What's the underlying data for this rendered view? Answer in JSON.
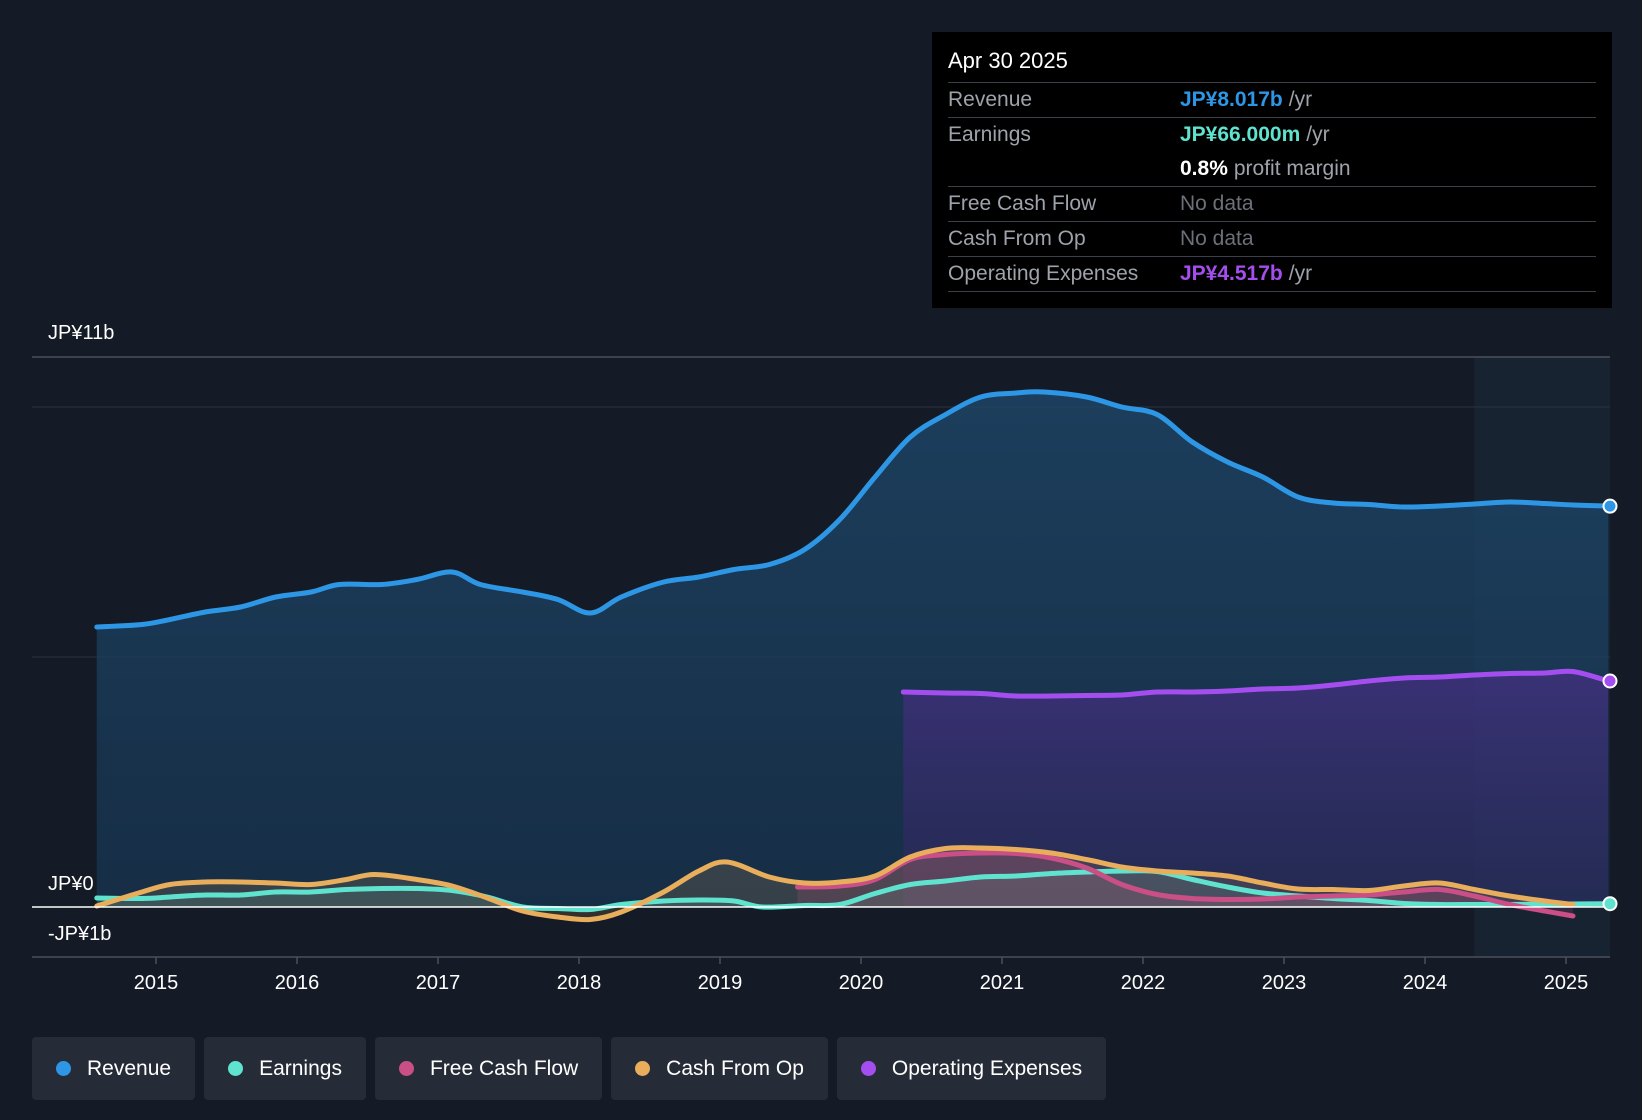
{
  "tooltip": {
    "date": "Apr 30 2025",
    "rows": [
      {
        "label": "Revenue",
        "value": "JP¥8.017b",
        "unit": "/yr"
      },
      {
        "label": "Earnings",
        "value": "JP¥66.000m",
        "unit": "/yr"
      },
      {
        "label": "",
        "value": "0.8%",
        "unit": "profit margin"
      },
      {
        "label": "Free Cash Flow",
        "value": "No data"
      },
      {
        "label": "Cash From Op",
        "value": "No data"
      },
      {
        "label": "Operating Expenses",
        "value": "JP¥4.517b",
        "unit": "/yr"
      }
    ]
  },
  "legend": [
    {
      "label": "Revenue",
      "color": "#2d97e6"
    },
    {
      "label": "Earnings",
      "color": "#5fe3cf"
    },
    {
      "label": "Free Cash Flow",
      "color": "#c94f86"
    },
    {
      "label": "Cash From Op",
      "color": "#e8ae5c"
    },
    {
      "label": "Operating Expenses",
      "color": "#a54ef0"
    }
  ],
  "colors": {
    "revenue": "#2d97e6",
    "earnings": "#5fe3cf",
    "fcf": "#c94f86",
    "cfo": "#e8ae5c",
    "opex": "#a54ef0"
  },
  "chart_data": {
    "type": "area",
    "y_labels": {
      "top": "JP¥11b",
      "zero": "JP¥0",
      "bottom": "-JP¥1b"
    },
    "ylim": [
      -1,
      11
    ],
    "xlim": [
      2014.0,
      2025.3
    ],
    "x_ticks": [
      "2015",
      "2016",
      "2017",
      "2018",
      "2019",
      "2020",
      "2021",
      "2022",
      "2023",
      "2024",
      "2025"
    ],
    "forecast_start": 2024.35,
    "series": [
      {
        "name": "Revenue",
        "key": "revenue",
        "unit": "JP¥b",
        "points": [
          [
            2014.58,
            5.6
          ],
          [
            2014.9,
            5.65
          ],
          [
            2015.1,
            5.75
          ],
          [
            2015.35,
            5.9
          ],
          [
            2015.6,
            6.0
          ],
          [
            2015.85,
            6.2
          ],
          [
            2016.1,
            6.3
          ],
          [
            2016.3,
            6.45
          ],
          [
            2016.6,
            6.45
          ],
          [
            2016.85,
            6.55
          ],
          [
            2017.1,
            6.7
          ],
          [
            2017.3,
            6.45
          ],
          [
            2017.6,
            6.3
          ],
          [
            2017.85,
            6.15
          ],
          [
            2018.08,
            5.88
          ],
          [
            2018.3,
            6.2
          ],
          [
            2018.6,
            6.5
          ],
          [
            2018.85,
            6.6
          ],
          [
            2019.1,
            6.75
          ],
          [
            2019.35,
            6.85
          ],
          [
            2019.6,
            7.15
          ],
          [
            2019.85,
            7.75
          ],
          [
            2020.1,
            8.6
          ],
          [
            2020.35,
            9.4
          ],
          [
            2020.6,
            9.85
          ],
          [
            2020.85,
            10.2
          ],
          [
            2021.1,
            10.28
          ],
          [
            2021.3,
            10.3
          ],
          [
            2021.6,
            10.2
          ],
          [
            2021.85,
            10.0
          ],
          [
            2022.1,
            9.85
          ],
          [
            2022.35,
            9.3
          ],
          [
            2022.6,
            8.9
          ],
          [
            2022.85,
            8.6
          ],
          [
            2023.1,
            8.2
          ],
          [
            2023.35,
            8.08
          ],
          [
            2023.6,
            8.05
          ],
          [
            2023.85,
            8.0
          ],
          [
            2024.1,
            8.02
          ],
          [
            2024.35,
            8.06
          ],
          [
            2024.6,
            8.1
          ],
          [
            2024.85,
            8.07
          ],
          [
            2025.05,
            8.04
          ],
          [
            2025.3,
            8.02
          ]
        ]
      },
      {
        "name": "Operating Expenses",
        "key": "opex",
        "unit": "JP¥b",
        "points": [
          [
            2020.3,
            4.3
          ],
          [
            2020.6,
            4.28
          ],
          [
            2020.85,
            4.27
          ],
          [
            2021.1,
            4.22
          ],
          [
            2021.35,
            4.22
          ],
          [
            2021.6,
            4.23
          ],
          [
            2021.85,
            4.24
          ],
          [
            2022.1,
            4.3
          ],
          [
            2022.35,
            4.3
          ],
          [
            2022.6,
            4.32
          ],
          [
            2022.85,
            4.36
          ],
          [
            2023.1,
            4.38
          ],
          [
            2023.35,
            4.44
          ],
          [
            2023.6,
            4.52
          ],
          [
            2023.85,
            4.58
          ],
          [
            2024.1,
            4.6
          ],
          [
            2024.35,
            4.64
          ],
          [
            2024.6,
            4.67
          ],
          [
            2024.85,
            4.68
          ],
          [
            2025.05,
            4.71
          ],
          [
            2025.3,
            4.52
          ]
        ]
      },
      {
        "name": "Earnings",
        "key": "earnings",
        "unit": "JP¥b",
        "points": [
          [
            2014.58,
            0.18
          ],
          [
            2014.9,
            0.17
          ],
          [
            2015.1,
            0.2
          ],
          [
            2015.35,
            0.24
          ],
          [
            2015.6,
            0.24
          ],
          [
            2015.85,
            0.3
          ],
          [
            2016.1,
            0.3
          ],
          [
            2016.35,
            0.35
          ],
          [
            2016.6,
            0.37
          ],
          [
            2016.85,
            0.37
          ],
          [
            2017.1,
            0.33
          ],
          [
            2017.35,
            0.2
          ],
          [
            2017.6,
            0.0
          ],
          [
            2017.85,
            -0.03
          ],
          [
            2018.08,
            -0.05
          ],
          [
            2018.3,
            0.05
          ],
          [
            2018.6,
            0.12
          ],
          [
            2018.85,
            0.14
          ],
          [
            2019.1,
            0.12
          ],
          [
            2019.3,
            0.0
          ],
          [
            2019.6,
            0.03
          ],
          [
            2019.85,
            0.05
          ],
          [
            2020.1,
            0.27
          ],
          [
            2020.35,
            0.45
          ],
          [
            2020.6,
            0.52
          ],
          [
            2020.85,
            0.6
          ],
          [
            2021.1,
            0.62
          ],
          [
            2021.35,
            0.67
          ],
          [
            2021.6,
            0.7
          ],
          [
            2021.85,
            0.72
          ],
          [
            2022.1,
            0.71
          ],
          [
            2022.35,
            0.55
          ],
          [
            2022.6,
            0.4
          ],
          [
            2022.85,
            0.28
          ],
          [
            2023.1,
            0.22
          ],
          [
            2023.35,
            0.17
          ],
          [
            2023.6,
            0.13
          ],
          [
            2023.85,
            0.07
          ],
          [
            2024.1,
            0.05
          ],
          [
            2024.35,
            0.05
          ],
          [
            2024.6,
            0.05
          ],
          [
            2024.85,
            0.06
          ],
          [
            2025.05,
            0.06
          ],
          [
            2025.3,
            0.066
          ]
        ]
      },
      {
        "name": "Free Cash Flow",
        "key": "fcf",
        "unit": "JP¥b",
        "points": [
          [
            2019.55,
            0.4
          ],
          [
            2019.85,
            0.42
          ],
          [
            2020.1,
            0.55
          ],
          [
            2020.35,
            0.95
          ],
          [
            2020.6,
            1.05
          ],
          [
            2020.85,
            1.08
          ],
          [
            2021.1,
            1.07
          ],
          [
            2021.35,
            0.98
          ],
          [
            2021.6,
            0.78
          ],
          [
            2021.85,
            0.45
          ],
          [
            2022.1,
            0.25
          ],
          [
            2022.35,
            0.17
          ],
          [
            2022.6,
            0.15
          ],
          [
            2022.85,
            0.16
          ],
          [
            2023.1,
            0.2
          ],
          [
            2023.35,
            0.22
          ],
          [
            2023.6,
            0.24
          ],
          [
            2023.85,
            0.3
          ],
          [
            2024.1,
            0.35
          ],
          [
            2024.35,
            0.22
          ],
          [
            2024.6,
            0.05
          ],
          [
            2024.85,
            -0.08
          ],
          [
            2025.05,
            -0.18
          ]
        ]
      },
      {
        "name": "Cash From Op",
        "key": "cfo",
        "unit": "JP¥b",
        "points": [
          [
            2014.58,
            0.02
          ],
          [
            2014.9,
            0.3
          ],
          [
            2015.1,
            0.45
          ],
          [
            2015.35,
            0.5
          ],
          [
            2015.6,
            0.5
          ],
          [
            2015.85,
            0.48
          ],
          [
            2016.1,
            0.45
          ],
          [
            2016.35,
            0.55
          ],
          [
            2016.55,
            0.65
          ],
          [
            2016.85,
            0.55
          ],
          [
            2017.1,
            0.42
          ],
          [
            2017.35,
            0.18
          ],
          [
            2017.6,
            -0.08
          ],
          [
            2017.85,
            -0.2
          ],
          [
            2018.08,
            -0.25
          ],
          [
            2018.3,
            -0.1
          ],
          [
            2018.6,
            0.3
          ],
          [
            2018.85,
            0.72
          ],
          [
            2019.05,
            0.9
          ],
          [
            2019.35,
            0.6
          ],
          [
            2019.6,
            0.48
          ],
          [
            2019.85,
            0.5
          ],
          [
            2020.1,
            0.62
          ],
          [
            2020.35,
            1.0
          ],
          [
            2020.6,
            1.17
          ],
          [
            2020.85,
            1.18
          ],
          [
            2021.1,
            1.15
          ],
          [
            2021.35,
            1.08
          ],
          [
            2021.6,
            0.95
          ],
          [
            2021.85,
            0.8
          ],
          [
            2022.1,
            0.72
          ],
          [
            2022.35,
            0.68
          ],
          [
            2022.6,
            0.62
          ],
          [
            2022.85,
            0.48
          ],
          [
            2023.1,
            0.36
          ],
          [
            2023.35,
            0.35
          ],
          [
            2023.6,
            0.33
          ],
          [
            2023.85,
            0.42
          ],
          [
            2024.1,
            0.48
          ],
          [
            2024.35,
            0.35
          ],
          [
            2024.6,
            0.22
          ],
          [
            2024.85,
            0.12
          ],
          [
            2025.05,
            0.05
          ]
        ]
      }
    ]
  }
}
